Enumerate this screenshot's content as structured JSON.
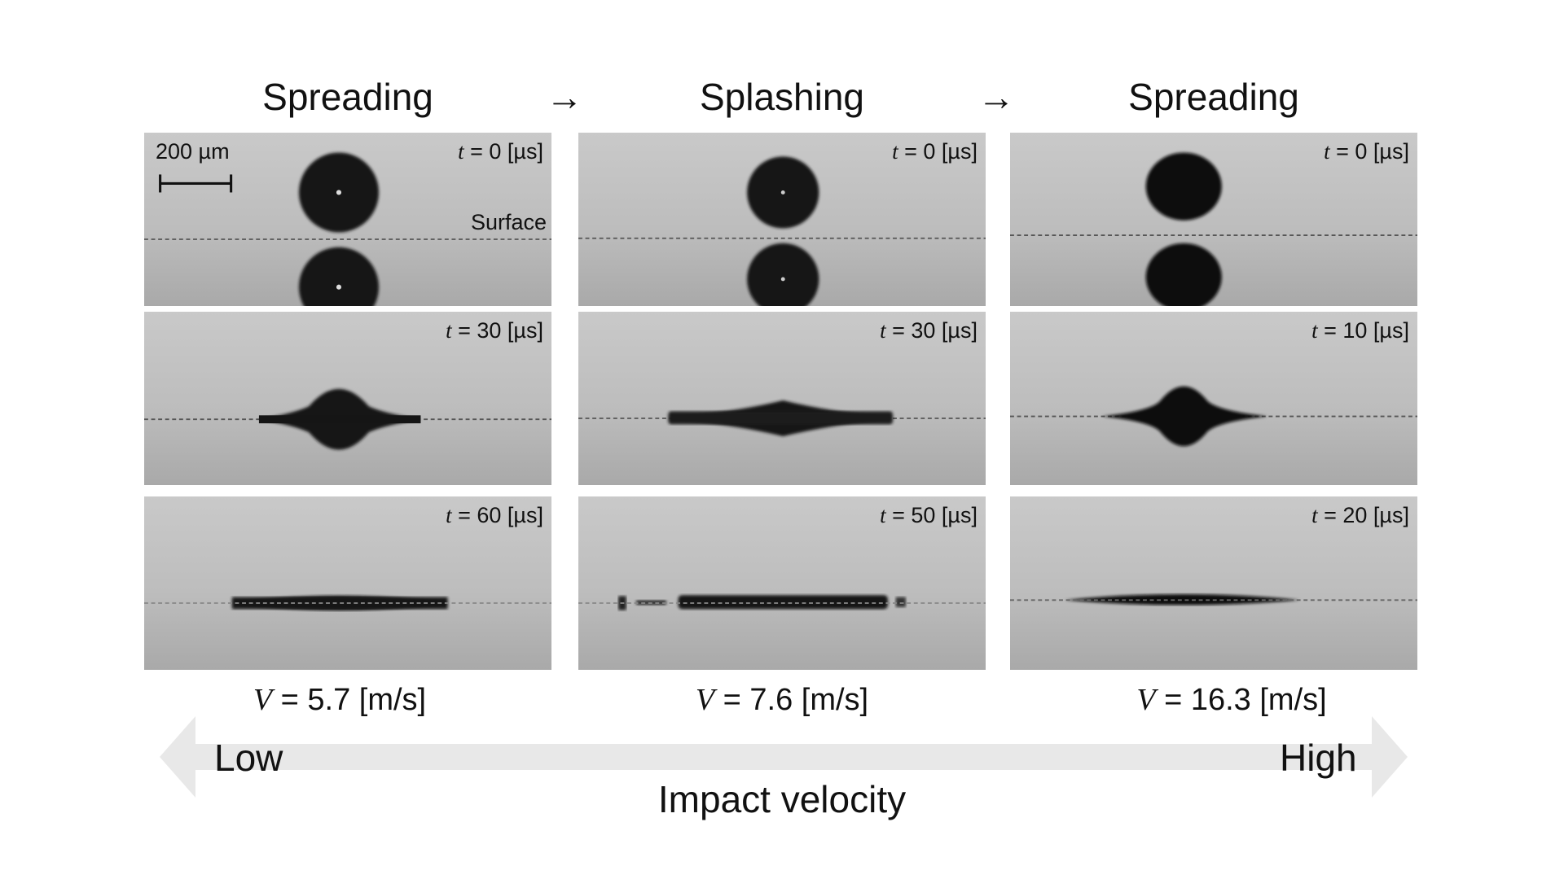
{
  "headers": {
    "col1": "Spreading",
    "col2": "Splashing",
    "col3": "Spreading",
    "arrow": "→"
  },
  "scale_bar": "200 µm",
  "surface_label": "Surface",
  "time_prefix": "t",
  "panels": {
    "c1r1": " = 0 [µs]",
    "c1r2": " = 30 [µs]",
    "c1r3": " = 60 [µs]",
    "c2r1": " = 0 [µs]",
    "c2r2": " = 30 [µs]",
    "c2r3": " = 50 [µs]",
    "c3r1": " = 0 [µs]",
    "c3r2": " = 10 [µs]",
    "c3r3": " = 20 [µs]"
  },
  "velocity_symbol": "V",
  "velocities": {
    "c1": " = 5.7 [m/s]",
    "c2": " = 7.6 [m/s]",
    "c3": " = 16.3 [m/s]"
  },
  "axis": {
    "low": "Low",
    "high": "High",
    "label": "Impact velocity"
  },
  "colors": {
    "arrow_band": "#e8e8e8",
    "drop": "#151515"
  }
}
